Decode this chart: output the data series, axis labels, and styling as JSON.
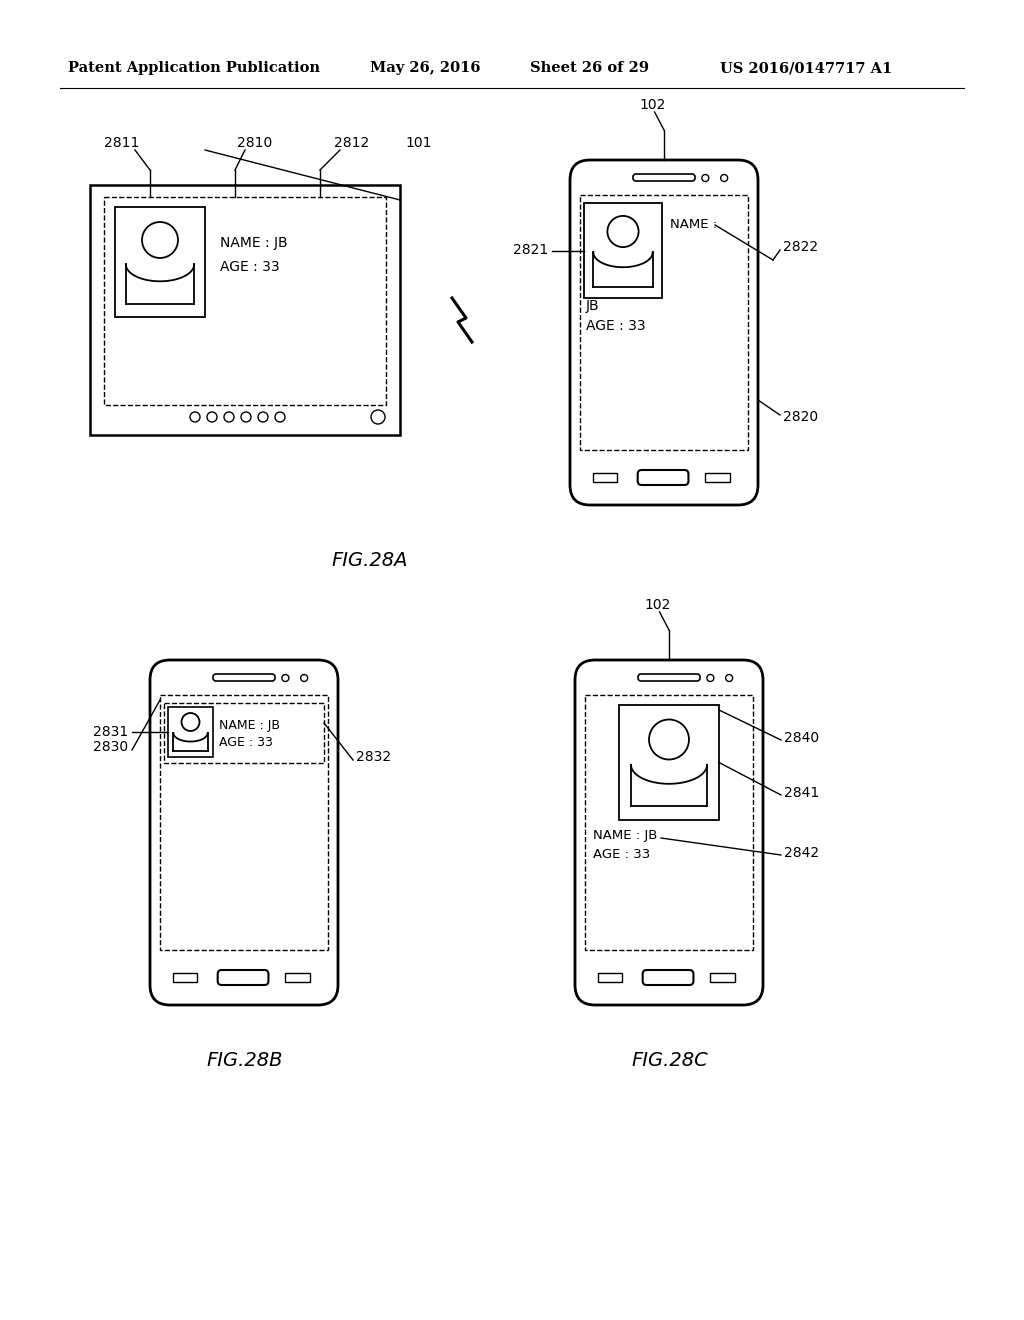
{
  "bg_color": "#ffffff",
  "header_text": "Patent Application Publication",
  "header_date": "May 26, 2016",
  "header_sheet": "Sheet 26 of 29",
  "header_patent": "US 2016/0147717 A1",
  "fig28a_label": "FIG.28A",
  "fig28b_label": "FIG.28B",
  "fig28c_label": "FIG.28C",
  "label_101": "101",
  "label_102_a": "102",
  "label_102_c": "102",
  "label_2810": "2810",
  "label_2811": "2811",
  "label_2812": "2812",
  "label_2820": "2820",
  "label_2821": "2821",
  "label_2822": "2822",
  "label_2830": "2830",
  "label_2831": "2831",
  "label_2832": "2832",
  "label_2840": "2840",
  "label_2841": "2841",
  "label_2842": "2842",
  "text_name_jb": "NAME : JB",
  "text_age_33": "AGE : 33",
  "text_name_colon": "NAME :",
  "text_jb": "JB",
  "text_age_33b": "AGE : 33",
  "text_name_jb_b": "NAME : JB",
  "text_age_33c": "AGE : 33",
  "text_name_jb_c": "NAME : JB",
  "text_age_33cc": "AGE : 33"
}
